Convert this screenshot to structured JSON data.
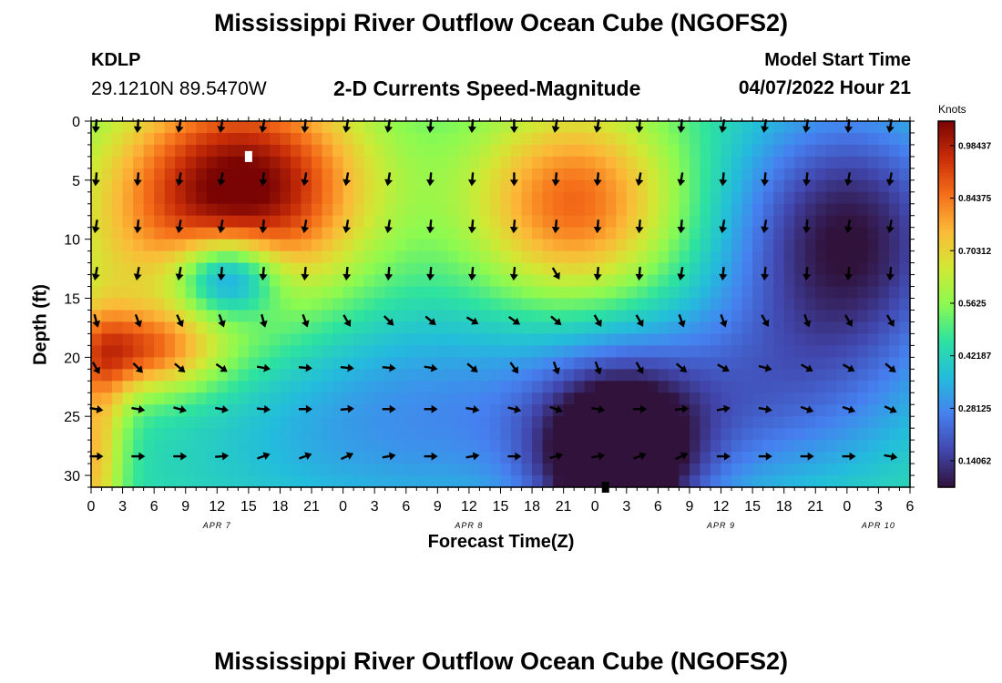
{
  "header": {
    "title": "Mississippi River Outflow Ocean Cube (NGOFS2)",
    "station": "KDLP",
    "coordinates": "29.1210N  89.5470W",
    "plot_title": "2-D Currents Speed-Magnitude",
    "model_start_label": "Model Start Time",
    "model_start_time": "04/07/2022 Hour 21"
  },
  "footer": {
    "title": "Mississippi River Outflow Ocean Cube (NGOFS2)"
  },
  "chart_data": {
    "type": "heatmap",
    "title": "2-D Currents Speed-Magnitude",
    "xlabel": "Forecast Time(Z)",
    "ylabel": "Depth (ft)",
    "x_range_hours": [
      0,
      78
    ],
    "x_tick_labels": [
      "0",
      "3",
      "6",
      "9",
      "12",
      "15",
      "18",
      "21",
      "0",
      "3",
      "6",
      "9",
      "12",
      "15",
      "18",
      "21",
      "0",
      "3",
      "6",
      "9",
      "12",
      "15",
      "18",
      "21",
      "0",
      "3",
      "6"
    ],
    "date_labels": [
      {
        "label": "APR 7",
        "hour": 12
      },
      {
        "label": "APR 8",
        "hour": 36
      },
      {
        "label": "APR 9",
        "hour": 60
      },
      {
        "label": "APR 10",
        "hour": 75
      }
    ],
    "y_range_ft": [
      0,
      31
    ],
    "y_ticks": [
      0,
      5,
      10,
      15,
      20,
      25,
      30
    ],
    "colorbar": {
      "unit": "Knots",
      "min": 0.07,
      "max": 1.05,
      "tick_values": [
        0.14062,
        0.28125,
        0.42187,
        0.5625,
        0.70312,
        0.84375,
        0.98437
      ],
      "tick_labels": [
        "0.14062",
        "0.28125",
        "0.42187",
        "0.5625",
        "0.70312",
        "0.84375",
        "0.98437"
      ]
    },
    "speed_blobs": [
      {
        "hour": 15,
        "depth": 5,
        "sh": 8,
        "sd": 6,
        "v": 0.45
      },
      {
        "hour": 10,
        "depth": 10,
        "sh": 10,
        "sd": 8,
        "v": 0.22
      },
      {
        "hour": 4.5,
        "depth": 19.5,
        "sh": 5,
        "sd": 2.5,
        "v": 0.35
      },
      {
        "hour": 46,
        "depth": 7,
        "sh": 7,
        "sd": 6,
        "v": 0.4
      },
      {
        "hour": 13,
        "depth": 13,
        "sh": 3.5,
        "sd": 2.5,
        "v": -0.45
      },
      {
        "hour": 72,
        "depth": 10,
        "sh": 8,
        "sd": 8,
        "v": -0.4
      },
      {
        "hour": 50,
        "depth": 29,
        "sh": 5,
        "sd": 5,
        "v": -0.5
      },
      {
        "hour": 60,
        "depth": 24,
        "sh": 12,
        "sd": 6,
        "v": -0.2
      },
      {
        "hour": 30,
        "depth": 25,
        "sh": 16,
        "sd": 7,
        "v": -0.18
      },
      {
        "hour": 0,
        "depth": 30,
        "sh": 2,
        "sd": 5,
        "v": 0.25
      },
      {
        "hour": 1,
        "depth": 22,
        "sh": 2,
        "sd": 5,
        "v": 0.15
      }
    ],
    "base_speed": 0.47,
    "markers": [
      {
        "hour": 15,
        "depth": 3,
        "color": "#ffffff"
      },
      {
        "hour": 49,
        "depth": 31,
        "color": "#000000"
      }
    ],
    "vector_rows": [
      {
        "depth": 0,
        "angles": [
          95,
          95,
          100,
          100,
          100,
          95,
          100,
          100,
          95,
          95,
          90,
          100,
          100,
          95,
          95,
          100,
          100,
          100,
          95,
          100
        ]
      },
      {
        "depth": 4.5,
        "angles": [
          95,
          95,
          100,
          100,
          95,
          100,
          100,
          100,
          95,
          95,
          90,
          95,
          95,
          100,
          100,
          95,
          95,
          95,
          100,
          100
        ]
      },
      {
        "depth": 8.5,
        "angles": [
          100,
          95,
          100,
          100,
          95,
          100,
          100,
          100,
          95,
          95,
          95,
          95,
          95,
          95,
          95,
          100,
          100,
          95,
          100,
          100
        ]
      },
      {
        "depth": 12.5,
        "angles": [
          100,
          100,
          100,
          95,
          95,
          95,
          95,
          95,
          95,
          95,
          95,
          60,
          95,
          95,
          100,
          95,
          95,
          95,
          95,
          95
        ]
      },
      {
        "depth": 16.5,
        "angles": [
          75,
          70,
          65,
          70,
          75,
          70,
          60,
          45,
          40,
          30,
          35,
          40,
          60,
          60,
          70,
          70,
          60,
          70,
          60,
          60
        ]
      },
      {
        "depth": 20.5,
        "angles": [
          60,
          45,
          40,
          35,
          10,
          5,
          5,
          5,
          10,
          40,
          55,
          70,
          70,
          60,
          40,
          30,
          15,
          30,
          30,
          40
        ]
      },
      {
        "depth": 24,
        "angles": [
          10,
          10,
          15,
          10,
          5,
          0,
          -5,
          0,
          0,
          10,
          15,
          20,
          10,
          0,
          -5,
          -10,
          10,
          20,
          20,
          25
        ]
      },
      {
        "depth": 28,
        "angles": [
          0,
          0,
          0,
          -5,
          -20,
          -20,
          -25,
          -10,
          0,
          -10,
          0,
          -15,
          -10,
          -20,
          -25,
          0,
          0,
          0,
          0,
          10
        ]
      }
    ]
  }
}
